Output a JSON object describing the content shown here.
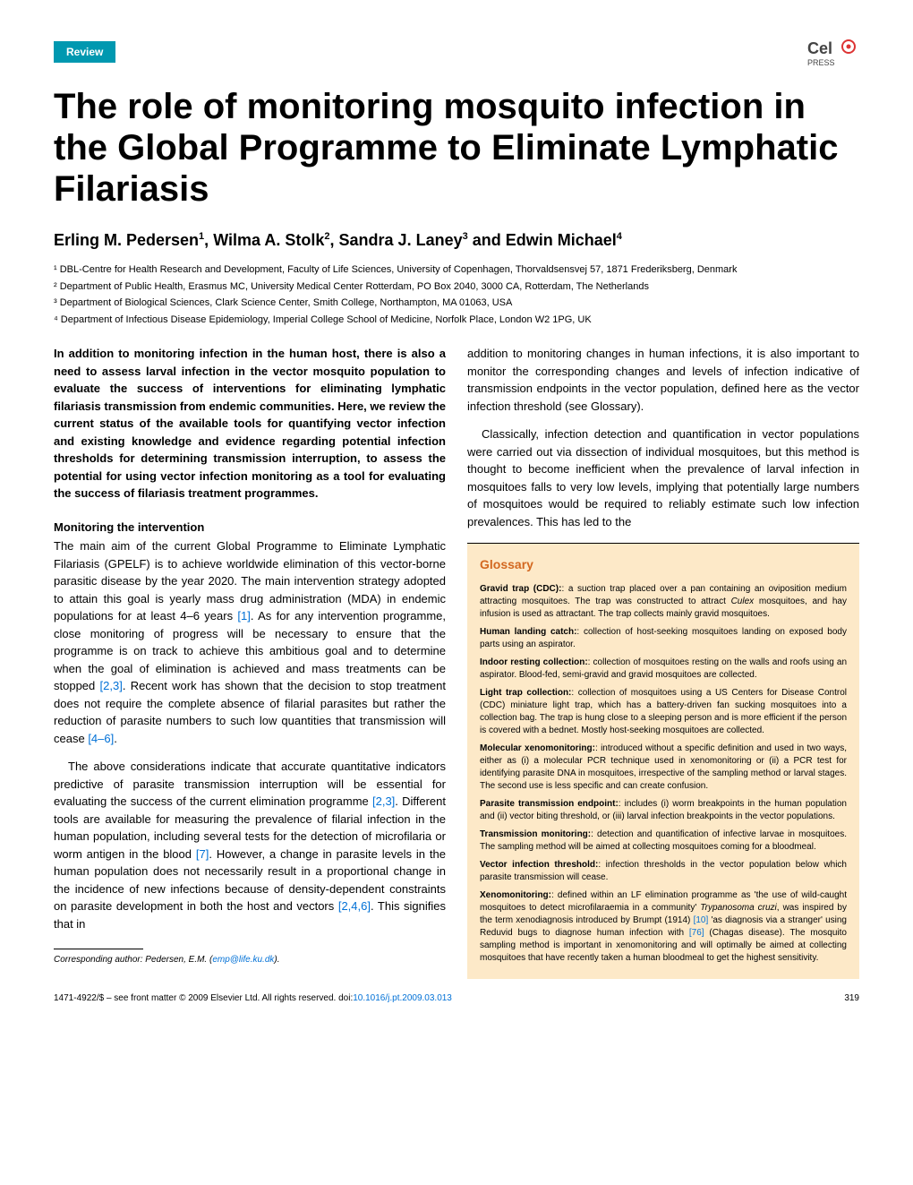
{
  "header": {
    "badge": "Review",
    "logo_name": "CellPress"
  },
  "title": "The role of monitoring mosquito infection in the Global Programme to Eliminate Lymphatic Filariasis",
  "authors_html": "Erling M. Pedersen|1|, Wilma A. Stolk|2|, Sandra J. Laney|3| and Edwin Michael|4|",
  "affiliations": [
    "¹ DBL-Centre for Health Research and Development, Faculty of Life Sciences, University of Copenhagen, Thorvaldsensvej 57, 1871 Frederiksberg, Denmark",
    "² Department of Public Health, Erasmus MC, University Medical Center Rotterdam, PO Box 2040, 3000 CA, Rotterdam, The Netherlands",
    "³ Department of Biological Sciences, Clark Science Center, Smith College, Northampton, MA 01063, USA",
    "⁴ Department of Infectious Disease Epidemiology, Imperial College School of Medicine, Norfolk Place, London W2 1PG, UK"
  ],
  "abstract": "In addition to monitoring infection in the human host, there is also a need to assess larval infection in the vector mosquito population to evaluate the success of interventions for eliminating lymphatic filariasis transmission from endemic communities. Here, we review the current status of the available tools for quantifying vector infection and existing knowledge and evidence regarding potential infection thresholds for determining transmission interruption, to assess the potential for using vector infection monitoring as a tool for evaluating the success of filariasis treatment programmes.",
  "section1_heading": "Monitoring the intervention",
  "para1": "The main aim of the current Global Programme to Eliminate Lymphatic Filariasis (GPELF) is to achieve worldwide elimination of this vector-borne parasitic disease by the year 2020. The main intervention strategy adopted to attain this goal is yearly mass drug administration (MDA) in endemic populations for at least 4–6 years ",
  "ref1a": "[1]",
  "para1b": ". As for any intervention programme, close monitoring of progress will be necessary to ensure that the programme is on track to achieve this ambitious goal and to determine when the goal of elimination is achieved and mass treatments can be stopped ",
  "ref1b": "[2,3]",
  "para1c": ". Recent work has shown that the decision to stop treatment does not require the complete absence of filarial parasites but rather the reduction of parasite numbers to such low quantities that transmission will cease ",
  "ref1c": "[4–6]",
  "para1d": ".",
  "para2": "The above considerations indicate that accurate quantitative indicators predictive of parasite transmission interruption will be essential for evaluating the success of the current elimination programme ",
  "ref2a": "[2,3]",
  "para2b": ". Different tools are available for measuring the prevalence of filarial infection in the human population, including several tests for the detection of microfilaria or worm antigen in the blood ",
  "ref2b": "[7]",
  "para2c": ". However, a change in parasite levels in the human population does not necessarily result in a proportional change in the incidence of new infections because of density-dependent constraints on parasite development in both the host and vectors ",
  "ref2c": "[2,4,6]",
  "para2d": ". This signifies that in",
  "col2_para1": "addition to monitoring changes in human infections, it is also important to monitor the corresponding changes and levels of infection indicative of transmission endpoints in the vector population, defined here as the vector infection threshold (see Glossary).",
  "col2_para2": "Classically, infection detection and quantification in vector populations were carried out via dissection of individual mosquitoes, but this method is thought to become inefficient when the prevalence of larval infection in mosquitoes falls to very low levels, implying that potentially large numbers of mosquitoes would be required to reliably estimate such low infection prevalences. This has led to the",
  "glossary": {
    "title": "Glossary",
    "entries": [
      {
        "term": "Gravid trap (CDC):",
        "def": ": a suction trap placed over a pan containing an oviposition medium attracting mosquitoes. The trap was constructed to attract ",
        "italic": "Culex",
        "def2": " mosquitoes, and hay infusion is used as attractant. The trap collects mainly gravid mosquitoes."
      },
      {
        "term": "Human landing catch:",
        "def": ": collection of host-seeking mosquitoes landing on exposed body parts using an aspirator."
      },
      {
        "term": "Indoor resting collection:",
        "def": ": collection of mosquitoes resting on the walls and roofs using an aspirator. Blood-fed, semi-gravid and gravid mosquitoes are collected."
      },
      {
        "term": "Light trap collection:",
        "def": ": collection of mosquitoes using a US Centers for Disease Control (CDC) miniature light trap, which has a battery-driven fan sucking mosquitoes into a collection bag. The trap is hung close to a sleeping person and is more efficient if the person is covered with a bednet. Mostly host-seeking mosquitoes are collected."
      },
      {
        "term": "Molecular xenomonitoring:",
        "def": ": introduced without a specific definition and used in two ways, either as (i) a molecular PCR technique used in xenomonitoring or (ii) a PCR test for identifying parasite DNA in mosquitoes, irrespective of the sampling method or larval stages. The second use is less specific and can create confusion."
      },
      {
        "term": "Parasite transmission endpoint:",
        "def": ": includes (i) worm breakpoints in the human population and (ii) vector biting threshold, or (iii) larval infection breakpoints in the vector populations."
      },
      {
        "term": "Transmission monitoring:",
        "def": ": detection and quantification of infective larvae in mosquitoes. The sampling method will be aimed at collecting mosquitoes coming for a bloodmeal."
      },
      {
        "term": "Vector infection threshold:",
        "def": ": infection thresholds in the vector population below which parasite transmission will cease."
      },
      {
        "term": "Xenomonitoring:",
        "def": ": defined within an LF elimination programme as 'the use of wild-caught mosquitoes to detect microfilaraemia in a community' ",
        "ref": "[10]",
        "def2": ", was inspired by the term xenodiagnosis introduced by Brumpt (1914) ",
        "ref2": "[76]",
        "def3": " 'as diagnosis via a stranger' using Reduvid bugs to diagnose human infection with ",
        "italic": "Trypanosoma cruzi",
        "def4": " (Chagas disease). The mosquito sampling method is important in xenomonitoring and will optimally be aimed at collecting mosquitoes that have recently taken a human bloodmeal to get the highest sensitivity."
      }
    ]
  },
  "footnote": {
    "label": "Corresponding author:",
    "name": " Pedersen, E.M. (",
    "email": "emp@life.ku.dk",
    "close": ")."
  },
  "footer": {
    "left": "1471-4922/$ – see front matter © 2009 Elsevier Ltd. All rights reserved. doi:",
    "doi": "10.1016/j.pt.2009.03.013",
    "page": "319"
  },
  "colors": {
    "badge_bg": "#0098b0",
    "glossary_bg": "#fde9c8",
    "glossary_title": "#d36820",
    "link": "#0070d6"
  }
}
